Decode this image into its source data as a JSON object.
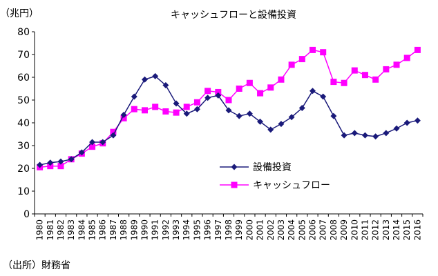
{
  "chart_data": {
    "type": "line",
    "title": "キャッシュフローと設備投資",
    "unit_label": "（兆円）",
    "source": "（出所）財務省",
    "xlabel": "",
    "ylabel": "",
    "ylim": [
      0,
      80
    ],
    "yticks": [
      0,
      10,
      20,
      30,
      40,
      50,
      60,
      70,
      80
    ],
    "grid": false,
    "legend_position": "lower-right",
    "x": [
      "1980",
      "1981",
      "1982",
      "1983",
      "1984",
      "1985",
      "1986",
      "1987",
      "1988",
      "1989",
      "1990",
      "1991",
      "1992",
      "1993",
      "1994",
      "1995",
      "1996",
      "1997",
      "1998",
      "1999",
      "2000",
      "2001",
      "2002",
      "2003",
      "2004",
      "2005",
      "2006",
      "2007",
      "2008",
      "2009",
      "2010",
      "2011",
      "2012",
      "2013",
      "2014",
      "2015",
      "2016"
    ],
    "series": [
      {
        "name": "設備投資",
        "color": "#1a1a7a",
        "marker": "diamond",
        "values": [
          21.5,
          22.5,
          23,
          24,
          27,
          31.5,
          31.5,
          34.5,
          43.5,
          51.5,
          59,
          60.5,
          56.5,
          48.5,
          44,
          46,
          51,
          52,
          45.5,
          43,
          44,
          40.5,
          37,
          39.5,
          42.5,
          46.5,
          54,
          51.5,
          43,
          34.5,
          35.5,
          34.5,
          34,
          35.5,
          37.5,
          40,
          41
        ]
      },
      {
        "name": "キャッシュフロー",
        "color": "#ff00ff",
        "marker": "square",
        "values": [
          20.5,
          21,
          21,
          24,
          26.5,
          29.5,
          31,
          36,
          42,
          46,
          45.5,
          47,
          45,
          44.5,
          47,
          49,
          54,
          53.5,
          50,
          55,
          57.5,
          53,
          55.5,
          59,
          65.5,
          68,
          72,
          71,
          58,
          57.5,
          63,
          61,
          59,
          63.5,
          65.5,
          68.5,
          72
        ]
      }
    ]
  }
}
